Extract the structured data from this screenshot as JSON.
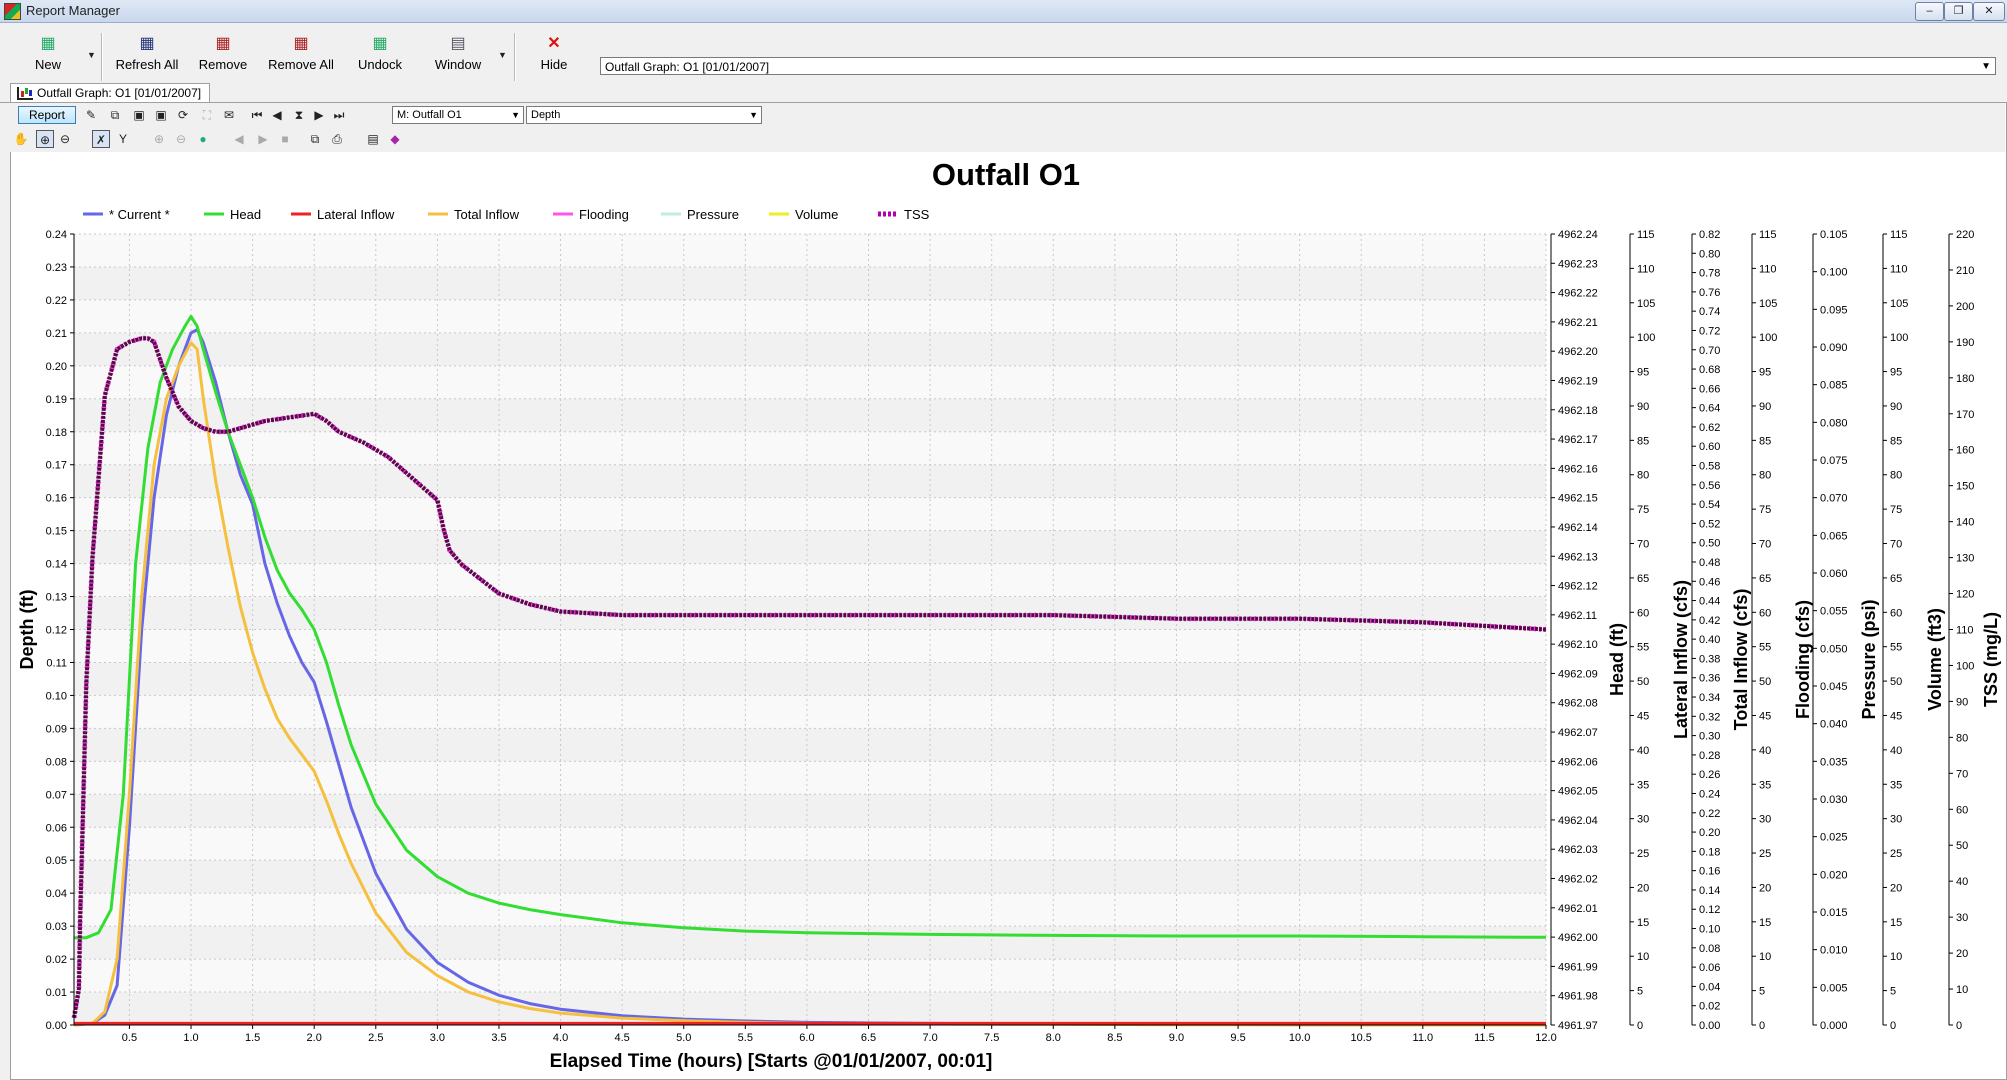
{
  "window": {
    "title": "Report Manager"
  },
  "toolbar": {
    "buttons": [
      {
        "label": "New",
        "icon": "new-report-icon"
      },
      {
        "label": "Refresh All",
        "icon": "refresh-all-icon"
      },
      {
        "label": "Remove",
        "icon": "remove-icon"
      },
      {
        "label": "Remove All",
        "icon": "remove-all-icon"
      },
      {
        "label": "Undock",
        "icon": "undock-icon"
      },
      {
        "label": "Window",
        "icon": "window-icon"
      },
      {
        "label": "Hide",
        "icon": "hide-icon"
      }
    ],
    "report_select_value": "Outfall Graph: O1 [01/01/2007]"
  },
  "doc_tab": {
    "label": "Outfall Graph: O1 [01/01/2007]"
  },
  "graph_toolbar": {
    "report_button": "Report",
    "object_combo": "M: Outfall O1",
    "variable_combo": "Depth"
  },
  "chart_data": {
    "type": "line",
    "title": "Outfall O1",
    "xlabel": "Elapsed Time (hours) [Starts @01/01/2007, 00:01]",
    "xlim": [
      0.05,
      12.0
    ],
    "x_ticks": [
      "0.5",
      "1.0",
      "1.5",
      "2.0",
      "2.5",
      "3.0",
      "3.5",
      "4.0",
      "4.5",
      "5.0",
      "5.5",
      "6.0",
      "6.5",
      "7.0",
      "7.5",
      "8.0",
      "8.5",
      "9.0",
      "9.5",
      "10.0",
      "10.5",
      "11.0",
      "11.5",
      "12.0"
    ],
    "grid": true,
    "legend_position": "top",
    "legend": [
      {
        "name": "* Current *",
        "color": "#6666e6"
      },
      {
        "name": "Head",
        "color": "#33dd33"
      },
      {
        "name": "Lateral Inflow",
        "color": "#ee2222"
      },
      {
        "name": "Total Inflow",
        "color": "#f5c040"
      },
      {
        "name": "Flooding",
        "color": "#ff55ee"
      },
      {
        "name": "Pressure",
        "color": "#bfeedd"
      },
      {
        "name": "Volume",
        "color": "#eeee22"
      },
      {
        "name": "TSS",
        "color": "#b000b0"
      }
    ],
    "axes": [
      {
        "label": "Depth (ft)",
        "ticks": [
          "0.00",
          "0.01",
          "0.02",
          "0.03",
          "0.04",
          "0.05",
          "0.06",
          "0.07",
          "0.08",
          "0.09",
          "0.10",
          "0.11",
          "0.12",
          "0.13",
          "0.14",
          "0.15",
          "0.16",
          "0.17",
          "0.18",
          "0.19",
          "0.20",
          "0.21",
          "0.22",
          "0.23",
          "0.24"
        ]
      },
      {
        "label": "Head (ft)",
        "ticks": [
          "4961.97",
          "4961.98",
          "4961.99",
          "4962.00",
          "4962.01",
          "4962.02",
          "4962.03",
          "4962.04",
          "4962.05",
          "4962.06",
          "4962.07",
          "4962.08",
          "4962.09",
          "4962.10",
          "4962.11",
          "4962.12",
          "4962.13",
          "4962.14",
          "4962.15",
          "4962.16",
          "4962.17",
          "4962.18",
          "4962.19",
          "4962.20",
          "4962.21",
          "4962.22",
          "4962.23",
          "4962.24"
        ]
      },
      {
        "label": "Lateral Inflow (cfs)",
        "ticks": [
          "0",
          "5",
          "10",
          "15",
          "20",
          "25",
          "30",
          "35",
          "40",
          "45",
          "50",
          "55",
          "60",
          "65",
          "70",
          "75",
          "80",
          "85",
          "90",
          "95",
          "100",
          "105",
          "110",
          "115"
        ]
      },
      {
        "label": "Total Inflow (cfs)",
        "ticks": [
          "0.00",
          "0.02",
          "0.04",
          "0.06",
          "0.08",
          "0.10",
          "0.12",
          "0.14",
          "0.16",
          "0.18",
          "0.20",
          "0.22",
          "0.24",
          "0.26",
          "0.28",
          "0.30",
          "0.32",
          "0.34",
          "0.36",
          "0.38",
          "0.40",
          "0.42",
          "0.44",
          "0.46",
          "0.48",
          "0.50",
          "0.52",
          "0.54",
          "0.56",
          "0.58",
          "0.60",
          "0.62",
          "0.64",
          "0.66",
          "0.68",
          "0.70",
          "0.72",
          "0.74",
          "0.76",
          "0.78",
          "0.80",
          "0.82"
        ]
      },
      {
        "label": "Flooding (cfs)",
        "ticks": [
          "0",
          "5",
          "10",
          "15",
          "20",
          "25",
          "30",
          "35",
          "40",
          "45",
          "50",
          "55",
          "60",
          "65",
          "70",
          "75",
          "80",
          "85",
          "90",
          "95",
          "100",
          "105",
          "110",
          "115"
        ]
      },
      {
        "label": "Pressure (psi)",
        "ticks": [
          "0.000",
          "0.005",
          "0.010",
          "0.015",
          "0.020",
          "0.025",
          "0.030",
          "0.035",
          "0.040",
          "0.045",
          "0.050",
          "0.055",
          "0.060",
          "0.065",
          "0.070",
          "0.075",
          "0.080",
          "0.085",
          "0.090",
          "0.095",
          "0.100",
          "0.105"
        ]
      },
      {
        "label": "Volume (ft3)",
        "ticks": [
          "0",
          "5",
          "10",
          "15",
          "20",
          "25",
          "30",
          "35",
          "40",
          "45",
          "50",
          "55",
          "60",
          "65",
          "70",
          "75",
          "80",
          "85",
          "90",
          "95",
          "100",
          "105",
          "110",
          "115"
        ]
      },
      {
        "label": "TSS (mg/L)",
        "ticks": [
          "0",
          "10",
          "20",
          "30",
          "40",
          "50",
          "60",
          "70",
          "80",
          "90",
          "100",
          "110",
          "120",
          "130",
          "140",
          "150",
          "160",
          "170",
          "180",
          "190",
          "200",
          "210",
          "220"
        ]
      }
    ],
    "series": [
      {
        "name": "* Current *",
        "axis": "Depth (ft)",
        "x": [
          0.05,
          0.2,
          0.3,
          0.4,
          0.5,
          0.6,
          0.7,
          0.8,
          0.9,
          1.0,
          1.05,
          1.1,
          1.2,
          1.3,
          1.4,
          1.5,
          1.6,
          1.7,
          1.8,
          1.9,
          2.0,
          2.1,
          2.2,
          2.3,
          2.5,
          2.75,
          3.0,
          3.25,
          3.5,
          3.75,
          4.0,
          4.5,
          5.0,
          5.5,
          6.0,
          7.0,
          8.0,
          9.0,
          10.0,
          11.0,
          12.0
        ],
        "values": [
          0.0,
          0.0005,
          0.003,
          0.012,
          0.06,
          0.12,
          0.16,
          0.185,
          0.2,
          0.21,
          0.211,
          0.207,
          0.195,
          0.18,
          0.167,
          0.158,
          0.14,
          0.128,
          0.118,
          0.11,
          0.104,
          0.092,
          0.079,
          0.066,
          0.046,
          0.029,
          0.019,
          0.013,
          0.009,
          0.0065,
          0.0048,
          0.0028,
          0.0018,
          0.0012,
          0.0008,
          0.0005,
          0.0003,
          0.0002,
          0.0001,
          0.0001,
          0.0001
        ]
      },
      {
        "name": "Head",
        "axis": "Depth (ft)",
        "x": [
          0.05,
          0.15,
          0.25,
          0.35,
          0.45,
          0.55,
          0.65,
          0.75,
          0.85,
          0.95,
          1.0,
          1.05,
          1.1,
          1.2,
          1.3,
          1.4,
          1.5,
          1.6,
          1.7,
          1.8,
          1.9,
          2.0,
          2.1,
          2.2,
          2.3,
          2.5,
          2.75,
          3.0,
          3.25,
          3.5,
          3.75,
          4.0,
          4.5,
          5.0,
          5.5,
          6.0,
          7.0,
          8.0,
          9.0,
          10.0,
          11.0,
          12.0
        ],
        "values": [
          0.0265,
          0.0265,
          0.028,
          0.035,
          0.07,
          0.14,
          0.175,
          0.195,
          0.205,
          0.212,
          0.215,
          0.212,
          0.205,
          0.192,
          0.18,
          0.17,
          0.16,
          0.148,
          0.138,
          0.131,
          0.126,
          0.12,
          0.11,
          0.097,
          0.085,
          0.067,
          0.053,
          0.045,
          0.04,
          0.037,
          0.035,
          0.0335,
          0.031,
          0.0295,
          0.0285,
          0.028,
          0.0275,
          0.0272,
          0.027,
          0.027,
          0.0268,
          0.0266
        ]
      },
      {
        "name": "Total Inflow",
        "axis": "Depth (ft)",
        "x": [
          0.05,
          0.2,
          0.3,
          0.4,
          0.5,
          0.6,
          0.7,
          0.8,
          0.9,
          1.0,
          1.05,
          1.1,
          1.2,
          1.3,
          1.4,
          1.5,
          1.6,
          1.7,
          1.8,
          1.9,
          2.0,
          2.1,
          2.2,
          2.3,
          2.5,
          2.75,
          3.0,
          3.25,
          3.5,
          3.75,
          4.0,
          4.5,
          5.0,
          5.5,
          6.0,
          7.0,
          8.0,
          9.0,
          10.0,
          11.0,
          12.0
        ],
        "values": [
          0.0,
          0.0005,
          0.004,
          0.02,
          0.07,
          0.13,
          0.17,
          0.19,
          0.2,
          0.207,
          0.205,
          0.19,
          0.165,
          0.145,
          0.127,
          0.113,
          0.102,
          0.093,
          0.087,
          0.082,
          0.077,
          0.068,
          0.058,
          0.049,
          0.034,
          0.022,
          0.015,
          0.01,
          0.007,
          0.005,
          0.0036,
          0.0021,
          0.0013,
          0.0008,
          0.0005,
          0.0003,
          0.0002,
          0.0001,
          0.0001,
          0.0,
          0.0
        ]
      },
      {
        "name": "Lateral Inflow",
        "axis": "Depth (ft)",
        "x": [
          0.05,
          12.0
        ],
        "values": [
          0.0005,
          0.0005
        ]
      },
      {
        "name": "TSS",
        "axis": "TSS (mg/L)",
        "x": [
          0.05,
          0.09,
          0.1,
          0.12,
          0.15,
          0.2,
          0.3,
          0.4,
          0.5,
          0.6,
          0.65,
          0.7,
          0.8,
          0.9,
          1.0,
          1.1,
          1.2,
          1.3,
          1.4,
          1.5,
          1.6,
          1.8,
          2.0,
          2.1,
          2.2,
          2.4,
          2.6,
          2.8,
          3.0,
          3.05,
          3.1,
          3.2,
          3.35,
          3.5,
          3.75,
          4.0,
          4.5,
          5.0,
          6.0,
          7.0,
          8.0,
          9.0,
          10.0,
          11.0,
          12.0
        ],
        "values": [
          2,
          10,
          30,
          55,
          95,
          130,
          175,
          188,
          190,
          191,
          191,
          190,
          180,
          172,
          168,
          166,
          165,
          165,
          166,
          167,
          168,
          169,
          170,
          168,
          165,
          162,
          158,
          152,
          146,
          138,
          132,
          128,
          124,
          120,
          117,
          115,
          114,
          114,
          114,
          114,
          114,
          113,
          113,
          112,
          110
        ]
      }
    ]
  }
}
